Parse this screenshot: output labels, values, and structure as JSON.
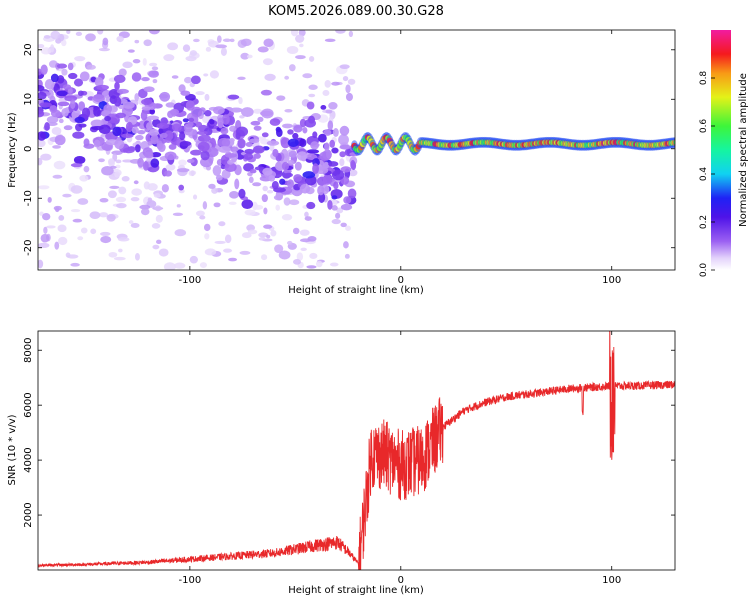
{
  "title": "KOM5.2026.089.00.30.G28",
  "chart_data": [
    {
      "type": "heatmap",
      "xlabel": "Height of straight line (km)",
      "ylabel": "Frequency (Hz)",
      "xlim": [
        -172,
        130
      ],
      "ylim": [
        -24.5,
        24
      ],
      "x_ticks": [
        -100,
        0,
        100
      ],
      "y_ticks": [
        -20,
        -10,
        0,
        10,
        20
      ],
      "colorbar": {
        "label": "Normalized spectral amplitude",
        "range": [
          0,
          1
        ],
        "ticks": [
          "0.0",
          "0.2",
          "0.4",
          "0.6",
          "0.8"
        ],
        "tick_values": [
          0,
          0.2,
          0.4,
          0.6,
          0.8
        ]
      },
      "features": [
        {
          "name": "scattered-noise-band",
          "x": [
            -172,
            -20
          ],
          "y_center": [
            9,
            -4
          ],
          "amplitude": [
            0.05,
            0.25
          ]
        },
        {
          "name": "carrier-line",
          "x": [
            -22,
            130
          ],
          "y_center": 1,
          "amplitude": [
            0.5,
            1.0
          ]
        }
      ]
    },
    {
      "type": "line",
      "xlabel": "Height of straight line (km)",
      "ylabel": "SNR (10 * v/v)",
      "xlim": [
        -172,
        130
      ],
      "ylim": [
        0,
        8700
      ],
      "x_ticks": [
        -100,
        0,
        100
      ],
      "y_ticks": [
        2000,
        4000,
        6000,
        8000
      ],
      "series": [
        {
          "name": "SNR",
          "color": "#e8282a",
          "x": [
            -172,
            -150,
            -120,
            -100,
            -80,
            -60,
            -40,
            -30,
            -25,
            -20,
            -14,
            -8,
            0,
            10,
            20,
            30,
            40,
            50,
            60,
            80,
            100,
            110,
            130
          ],
          "y": [
            150,
            180,
            250,
            350,
            450,
            550,
            800,
            900,
            600,
            200,
            4200,
            4200,
            3800,
            4000,
            5200,
            5800,
            6100,
            6300,
            6400,
            6600,
            6700,
            6700,
            6750
          ]
        }
      ]
    }
  ]
}
